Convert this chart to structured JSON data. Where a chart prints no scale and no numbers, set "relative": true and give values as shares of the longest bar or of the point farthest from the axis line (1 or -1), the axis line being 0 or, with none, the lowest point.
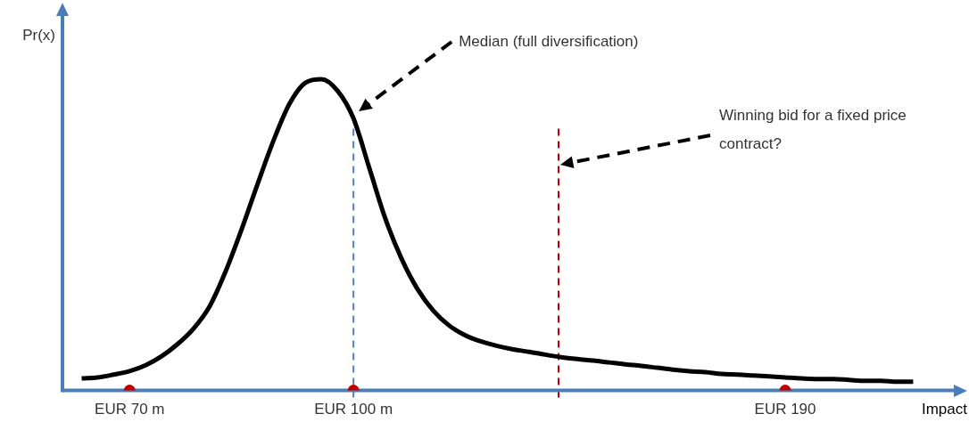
{
  "chart_data": {
    "type": "line",
    "relative": true,
    "xlabel": "Impact",
    "ylabel": "Pr(x)",
    "categories": [
      null,
      null,
      null,
      "EUR 70 m",
      null,
      null,
      null,
      null,
      null,
      null,
      null,
      null,
      null,
      null,
      null,
      null,
      null,
      "EUR 100 m",
      null,
      null,
      null,
      null,
      null,
      null,
      null,
      null,
      null,
      null,
      null,
      null,
      null,
      null,
      null,
      null,
      null,
      null,
      null,
      null,
      null,
      null,
      null,
      null,
      null,
      null,
      "EUR 190",
      null,
      null,
      null,
      null,
      null,
      null,
      null,
      null
    ],
    "series": [
      {
        "color": "#000000",
        "marker": "none",
        "line_style": "solid",
        "values": [
          0.039,
          0.042,
          0.051,
          0.062,
          0.081,
          0.11,
          0.149,
          0.199,
          0.27,
          0.382,
          0.517,
          0.663,
          0.803,
          0.921,
          0.989,
          1,
          0.963,
          0.874,
          0.713,
          0.551,
          0.424,
          0.326,
          0.256,
          0.208,
          0.177,
          0.157,
          0.143,
          0.132,
          0.124,
          0.115,
          0.107,
          0.101,
          0.096,
          0.09,
          0.084,
          0.079,
          0.073,
          0.067,
          0.062,
          0.059,
          0.053,
          0.051,
          0.048,
          0.045,
          0.042,
          0.039,
          0.037,
          0.037,
          0.034,
          0.031,
          0.031,
          0.028,
          0.028
        ]
      },
      {
        "type": "scatter",
        "color": "#c00000",
        "marker": "circle",
        "values": [
          null,
          null,
          null,
          0,
          null,
          null,
          null,
          null,
          null,
          null,
          null,
          null,
          null,
          null,
          null,
          null,
          null,
          0,
          null,
          null,
          null,
          null,
          null,
          null,
          null,
          null,
          null,
          null,
          null,
          null,
          null,
          null,
          null,
          null,
          null,
          null,
          null,
          null,
          null,
          null,
          null,
          null,
          null,
          null,
          0,
          null,
          null,
          null,
          null,
          null,
          null,
          null,
          null
        ]
      }
    ],
    "ref_lines": [
      {
        "axis": "x",
        "value": "EUR 100 m",
        "color": "#4f81bd",
        "line_style": "dashed"
      }
    ],
    "annotations": [
      "Median (full diversification)",
      "Winning bid for a fixed price contract?"
    ],
    "grid": false,
    "legend": false
  }
}
